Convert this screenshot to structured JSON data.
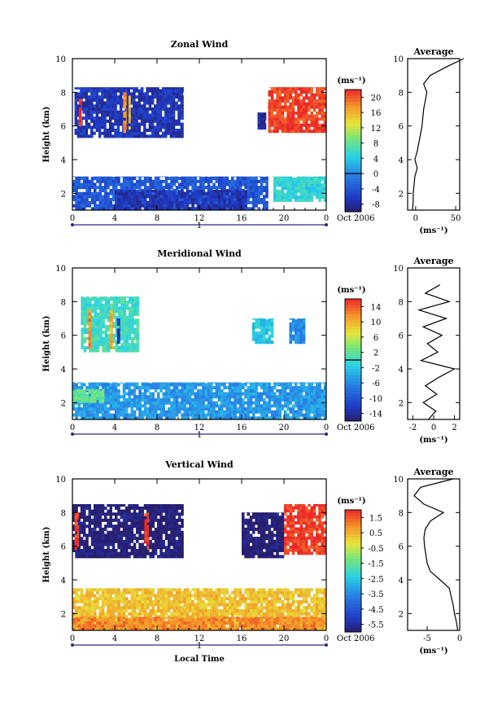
{
  "chart_data": [
    {
      "type": "heatmap",
      "title": "Zonal Wind",
      "ylabel": "Height (km)",
      "xlabel": "",
      "xlim": [
        0,
        24
      ],
      "ylim": [
        1,
        10
      ],
      "x_ticks": [
        "0",
        "4",
        "8",
        "12",
        "16",
        "20",
        "0"
      ],
      "y_ticks": [
        "2",
        "4",
        "6",
        "8",
        "10"
      ],
      "date_label": "Oct 2006",
      "day_marker": "1",
      "colorbar": {
        "unit": "(ms⁻¹)",
        "ticks": [
          "20",
          "16",
          "12",
          "8",
          "4",
          "0",
          "-4",
          "-8"
        ],
        "range": [
          -10,
          22
        ],
        "contour_level": 0
      },
      "regions": [
        {
          "t0": 0.2,
          "t1": 10.5,
          "h0": 5.3,
          "h1": 8.3,
          "v": -7
        },
        {
          "t0": 0.6,
          "t1": 0.9,
          "h0": 6.0,
          "h1": 7.6,
          "v": 22
        },
        {
          "t0": 4.8,
          "t1": 5.1,
          "h0": 5.6,
          "h1": 8.0,
          "v": 18
        },
        {
          "t0": 5.3,
          "t1": 5.5,
          "h0": 5.8,
          "h1": 7.8,
          "v": 16
        },
        {
          "t0": 18.5,
          "t1": 24,
          "h0": 5.6,
          "h1": 8.3,
          "v": 21
        },
        {
          "t0": 17.5,
          "t1": 18.3,
          "h0": 5.8,
          "h1": 6.8,
          "v": -8
        },
        {
          "t0": 0.0,
          "t1": 18.5,
          "h0": 1.0,
          "h1": 3.0,
          "v": -4
        },
        {
          "t0": 4.0,
          "t1": 16.5,
          "h0": 1.0,
          "h1": 2.2,
          "v": -7
        },
        {
          "t0": 19.0,
          "t1": 24,
          "h0": 1.5,
          "h1": 3.0,
          "v": 5
        }
      ],
      "average": {
        "title": "Average",
        "xlabel": "(ms⁻¹)",
        "xlim": [
          -10,
          55
        ],
        "x_ticks": [
          "0",
          "50"
        ],
        "y_ticks": [
          "2",
          "4",
          "6",
          "8",
          "10"
        ],
        "h": [
          1,
          1.5,
          2,
          2.5,
          3,
          3.5,
          4,
          4.5,
          5,
          5.5,
          6,
          6.5,
          7,
          7.5,
          8,
          8.5,
          9,
          9.5,
          10
        ],
        "v": [
          -4,
          -3,
          -3,
          -2,
          -1,
          2,
          -1,
          2,
          4,
          6,
          8,
          9,
          10,
          12,
          14,
          10,
          18,
          38,
          60
        ]
      }
    },
    {
      "type": "heatmap",
      "title": "Meridional Wind",
      "ylabel": "Height (km)",
      "xlabel": "",
      "xlim": [
        0,
        24
      ],
      "ylim": [
        1,
        10
      ],
      "x_ticks": [
        "0",
        "4",
        "8",
        "12",
        "16",
        "20",
        "0"
      ],
      "y_ticks": [
        "2",
        "4",
        "6",
        "8",
        "10"
      ],
      "date_label": "Oct 2006",
      "day_marker": "1",
      "colorbar": {
        "unit": "(ms⁻¹)",
        "ticks": [
          "14",
          "10",
          "6",
          "2",
          "-2",
          "-6",
          "-10",
          "-14"
        ],
        "range": [
          -16,
          16
        ],
        "contour_level": 0
      },
      "regions": [
        {
          "t0": 0.8,
          "t1": 6.3,
          "h0": 5.0,
          "h1": 8.3,
          "v": 0
        },
        {
          "t0": 1.5,
          "t1": 1.8,
          "h0": 5.2,
          "h1": 7.5,
          "v": 12
        },
        {
          "t0": 3.5,
          "t1": 3.8,
          "h0": 5.2,
          "h1": 7.5,
          "v": 10
        },
        {
          "t0": 4.2,
          "t1": 4.5,
          "h0": 5.5,
          "h1": 7.0,
          "v": -12
        },
        {
          "t0": 17.0,
          "t1": 19.0,
          "h0": 5.5,
          "h1": 7.0,
          "v": -2
        },
        {
          "t0": 20.5,
          "t1": 22.0,
          "h0": 5.5,
          "h1": 7.0,
          "v": -6
        },
        {
          "t0": 0.0,
          "t1": 24,
          "h0": 1.0,
          "h1": 3.2,
          "v": -5
        },
        {
          "t0": 0.0,
          "t1": 3.0,
          "h0": 2.0,
          "h1": 2.8,
          "v": 2
        }
      ],
      "average": {
        "title": "Average",
        "xlabel": "(ms⁻¹)",
        "xlim": [
          -2.5,
          2.5
        ],
        "x_ticks": [
          "-2",
          "0",
          "2"
        ],
        "y_ticks": [
          "2",
          "4",
          "6",
          "8",
          "10"
        ],
        "h": [
          1,
          1.5,
          2,
          2.5,
          3,
          3.5,
          4,
          4.5,
          5,
          5.5,
          6,
          6.5,
          7,
          7.5,
          8,
          8.5,
          9
        ],
        "v": [
          -0.5,
          0.2,
          -1.0,
          0.3,
          -0.8,
          0.5,
          2.0,
          -1.2,
          0.4,
          -0.6,
          0.8,
          -1.0,
          1.2,
          -1.4,
          1.5,
          -0.8,
          0.6
        ]
      }
    },
    {
      "type": "heatmap",
      "title": "Vertical Wind",
      "ylabel": "Height (km)",
      "xlabel": "Local Time",
      "xlim": [
        0,
        24
      ],
      "ylim": [
        1,
        10
      ],
      "x_ticks": [
        "0",
        "4",
        "8",
        "12",
        "16",
        "20",
        "0"
      ],
      "y_ticks": [
        "2",
        "4",
        "6",
        "8",
        "10"
      ],
      "date_label": "Oct 2006",
      "day_marker": "1",
      "colorbar": {
        "unit": "(ms⁻¹)",
        "ticks": [
          "1.5",
          "0.5",
          "-0.5",
          "-1.5",
          "-2.5",
          "-3.5",
          "-4.5",
          "-5.5"
        ],
        "range": [
          -6,
          2
        ],
        "contour_level": null
      },
      "regions": [
        {
          "t0": 0.0,
          "t1": 10.5,
          "h0": 5.3,
          "h1": 8.5,
          "v": -6
        },
        {
          "t0": 0.2,
          "t1": 0.6,
          "h0": 5.8,
          "h1": 8.0,
          "v": 1.8
        },
        {
          "t0": 6.8,
          "t1": 7.2,
          "h0": 5.8,
          "h1": 8.0,
          "v": 1.8
        },
        {
          "t0": 16.0,
          "t1": 20.0,
          "h0": 5.3,
          "h1": 8.0,
          "v": -6
        },
        {
          "t0": 20.0,
          "t1": 24,
          "h0": 5.5,
          "h1": 8.5,
          "v": 1.8
        },
        {
          "t0": 0.0,
          "t1": 24,
          "h0": 1.0,
          "h1": 3.5,
          "v": 0.3
        },
        {
          "t0": 0.0,
          "t1": 24,
          "h0": 1.0,
          "h1": 1.8,
          "v": 1.0
        }
      ],
      "average": {
        "title": "Average",
        "xlabel": "(ms⁻¹)",
        "xlim": [
          -8,
          0
        ],
        "x_ticks": [
          "-5",
          "0"
        ],
        "y_ticks": [
          "2",
          "4",
          "6",
          "8",
          "10"
        ],
        "h": [
          1,
          1.5,
          2,
          2.5,
          3,
          3.5,
          4,
          4.5,
          5,
          5.5,
          6,
          6.5,
          7,
          7.5,
          8,
          8.5,
          9,
          9.5,
          10
        ],
        "v": [
          -0.3,
          -0.5,
          -0.8,
          -1.0,
          -1.3,
          -1.6,
          -3.0,
          -4.5,
          -5.0,
          -5.2,
          -5.4,
          -5.5,
          -5.3,
          -4.5,
          -2.5,
          -5.5,
          -7.0,
          -6.0,
          -1.0
        ]
      }
    }
  ]
}
